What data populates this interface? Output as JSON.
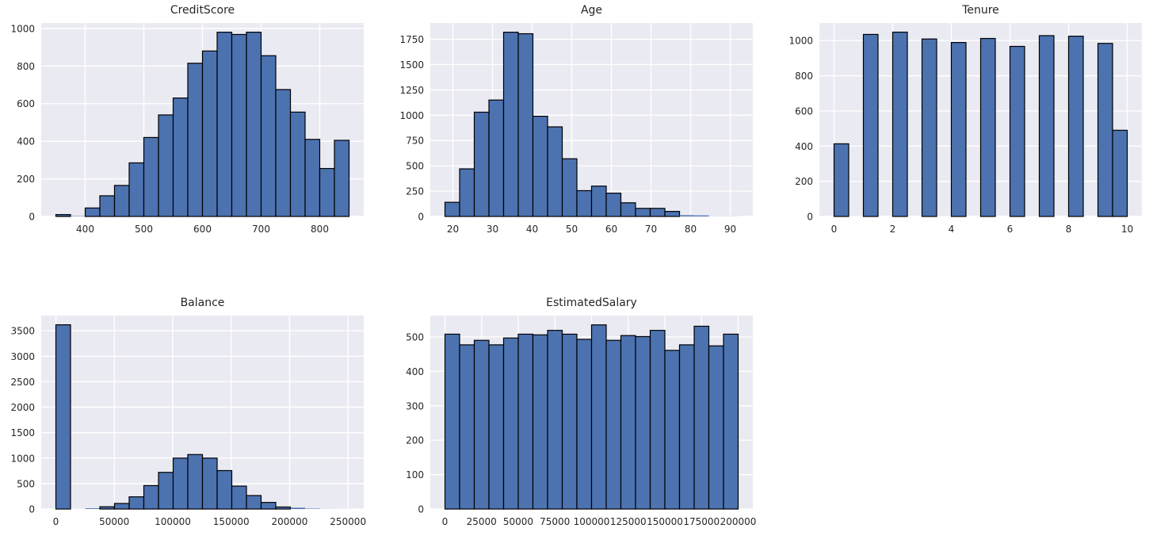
{
  "figure": {
    "background": "#ffffff",
    "plot_background": "#eaeaf2",
    "bar_fill": "#4c72b0",
    "bar_edge": "#000000",
    "grid_color": "#ffffff",
    "text_color": "#262626"
  },
  "chart_data": [
    {
      "type": "bar",
      "kind": "histogram",
      "title": "CreditScore",
      "bin_start": 350,
      "bin_width": 25,
      "counts": [
        10,
        2,
        45,
        110,
        165,
        285,
        420,
        540,
        630,
        815,
        880,
        980,
        968,
        980,
        855,
        675,
        555,
        410,
        255,
        405
      ],
      "x_ticks": [
        400,
        500,
        600,
        700,
        800
      ],
      "y_ticks": [
        0,
        200,
        400,
        600,
        800,
        1000
      ],
      "xlim": [
        325,
        875
      ],
      "ylim": [
        0,
        1029
      ],
      "grid": true,
      "legend": null
    },
    {
      "type": "bar",
      "kind": "histogram",
      "title": "Age",
      "bin_start": 18,
      "bin_width": 3.7,
      "counts": [
        140,
        470,
        1030,
        1150,
        1820,
        1805,
        990,
        885,
        570,
        255,
        300,
        230,
        135,
        80,
        80,
        50,
        12,
        10,
        1,
        1
      ],
      "x_ticks": [
        20,
        30,
        40,
        50,
        60,
        70,
        80,
        90
      ],
      "y_ticks": [
        0,
        250,
        500,
        750,
        1000,
        1250,
        1500,
        1750
      ],
      "xlim": [
        14.3,
        95.7
      ],
      "ylim": [
        0,
        1911
      ],
      "grid": true,
      "legend": null
    },
    {
      "type": "bar",
      "kind": "histogram",
      "title": "Tenure",
      "bin_start": 0,
      "bin_width": 0.5,
      "counts": [
        413,
        0,
        1035,
        0,
        1048,
        0,
        1009,
        0,
        989,
        0,
        1012,
        0,
        967,
        0,
        1028,
        0,
        1025,
        0,
        984,
        490
      ],
      "x_ticks": [
        0,
        2,
        4,
        6,
        8,
        10
      ],
      "y_ticks": [
        0,
        200,
        400,
        600,
        800,
        1000
      ],
      "xlim": [
        -0.5,
        10.5
      ],
      "ylim": [
        0,
        1100
      ],
      "grid": true,
      "legend": null
    },
    {
      "type": "bar",
      "kind": "histogram",
      "title": "Balance",
      "bin_start": 0,
      "bin_width": 12545,
      "counts": [
        3617,
        1,
        14,
        45,
        110,
        240,
        460,
        720,
        1000,
        1070,
        1000,
        755,
        450,
        265,
        130,
        40,
        25,
        8,
        2,
        1
      ],
      "x_ticks": [
        0,
        50000,
        100000,
        150000,
        200000,
        250000
      ],
      "y_ticks": [
        0,
        500,
        1000,
        1500,
        2000,
        2500,
        3000,
        3500
      ],
      "xlim": [
        -12545,
        263445
      ],
      "ylim": [
        0,
        3798
      ],
      "grid": true,
      "legend": null
    },
    {
      "type": "bar",
      "kind": "histogram",
      "title": "EstimatedSalary",
      "bin_start": 12,
      "bin_width": 9999,
      "counts": [
        508,
        477,
        490,
        477,
        497,
        508,
        506,
        519,
        508,
        493,
        535,
        490,
        504,
        501,
        519,
        461,
        477,
        531,
        474,
        508
      ],
      "x_ticks": [
        0,
        25000,
        50000,
        75000,
        100000,
        125000,
        150000,
        175000,
        200000
      ],
      "y_ticks": [
        0,
        100,
        200,
        300,
        400,
        500
      ],
      "xlim": [
        -9987,
        209990
      ],
      "ylim": [
        0,
        562
      ],
      "grid": true,
      "legend": null
    }
  ]
}
